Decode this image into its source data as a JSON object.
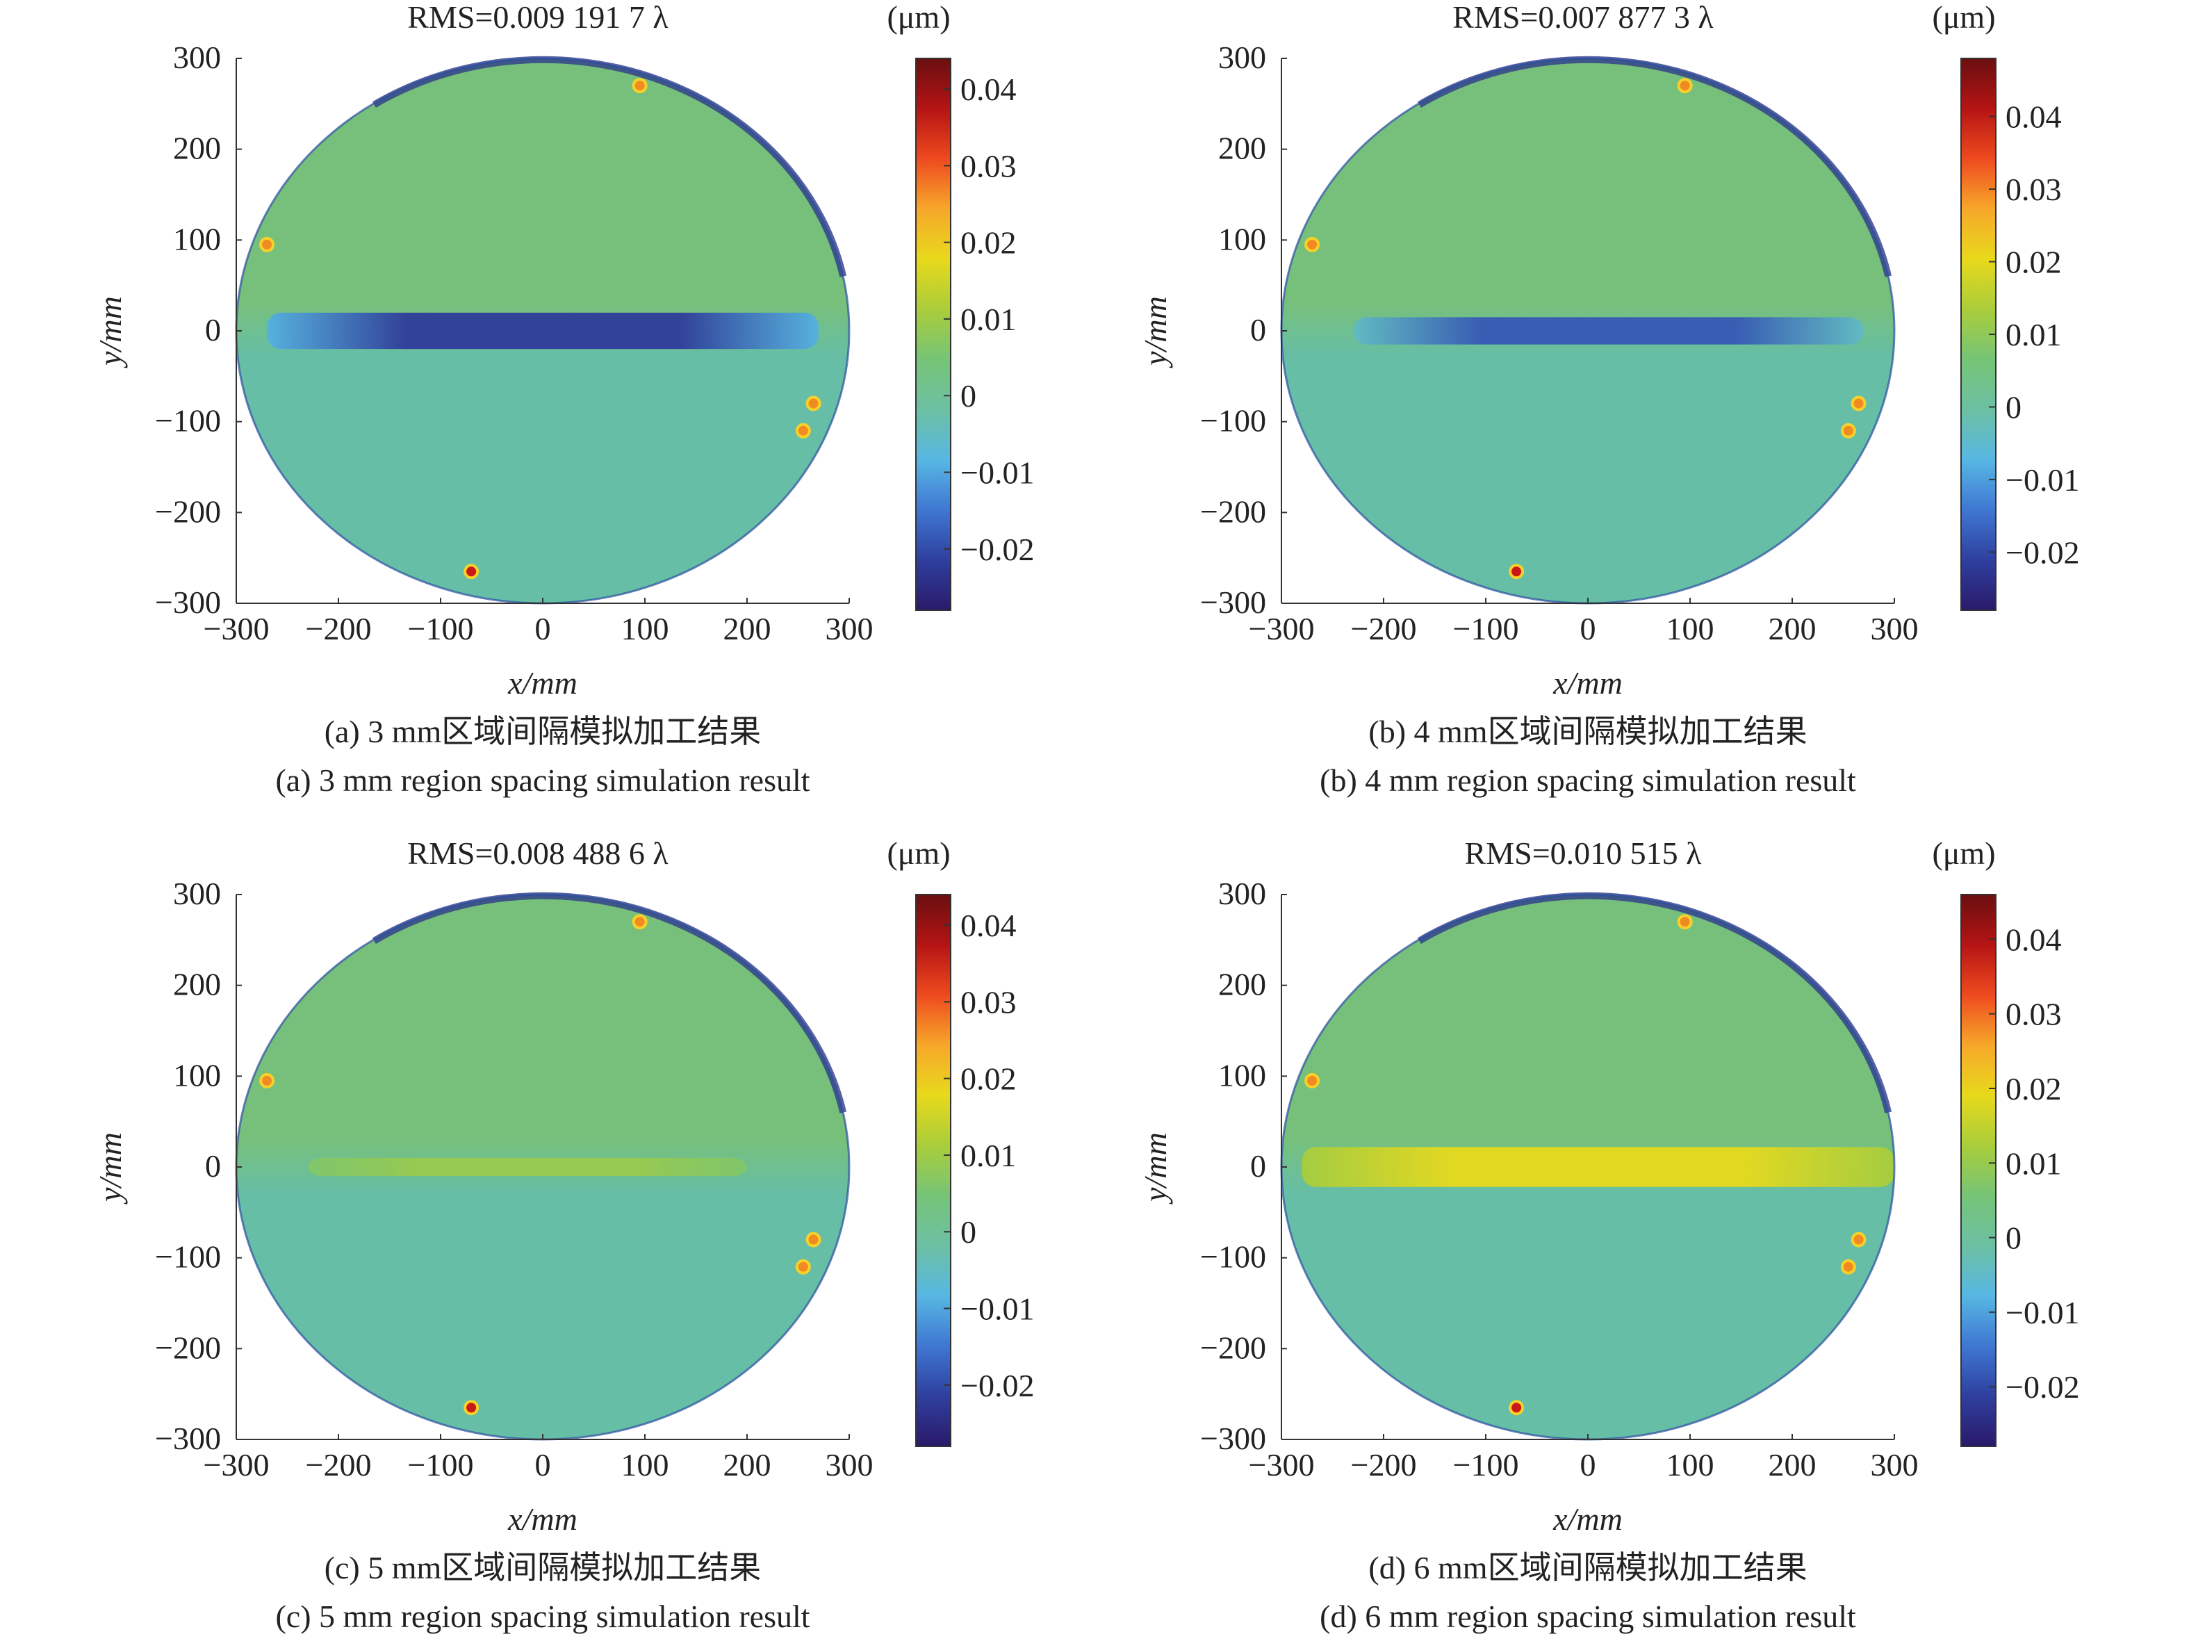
{
  "colors": {
    "colormap": [
      "#2a1a6a",
      "#2f3f9e",
      "#3f77d2",
      "#57b7e3",
      "#6cc0a3",
      "#76c477",
      "#aacd3a",
      "#e8d91c",
      "#f7a72a",
      "#ee4a1f",
      "#b51414",
      "#6a0f10"
    ],
    "field_low": "#66bea6",
    "field_high": "#77c07c",
    "rim": "#2f3a8a"
  },
  "chart_data": [
    {
      "type": "heatmap",
      "title": "RMS=0.009 191 7 λ",
      "unit_label": "(μm)",
      "xlabel": "x/mm",
      "ylabel": "y/mm",
      "xlim": [
        -300,
        300
      ],
      "ylim": [
        -300,
        300
      ],
      "x_ticks": [
        "−300",
        "−200",
        "−100",
        "0",
        "100",
        "200",
        "300"
      ],
      "y_ticks": [
        "300",
        "200",
        "100",
        "0",
        "−100",
        "−200",
        "−300"
      ],
      "colorbar": {
        "range": [
          -0.028,
          0.044
        ],
        "ticks": [
          0.04,
          0.03,
          0.02,
          0.01,
          0,
          -0.01,
          -0.02
        ],
        "tick_labels": [
          "0.04",
          "0.03",
          "0.02",
          "0.01",
          "0",
          "−0.01",
          "−0.02"
        ]
      },
      "band": {
        "y_center": 0,
        "half_height_mm": 20,
        "x_range": [
          -270,
          270
        ],
        "peak_value": -0.022,
        "edge_value": -0.009
      },
      "caption_cn": "(a) 3 mm区域间隔模拟加工结果",
      "caption_en": "(a) 3 mm region spacing simulation result"
    },
    {
      "type": "heatmap",
      "title": "RMS=0.007 877 3 λ",
      "unit_label": "(μm)",
      "xlabel": "x/mm",
      "ylabel": "y/mm",
      "xlim": [
        -300,
        300
      ],
      "ylim": [
        -300,
        300
      ],
      "x_ticks": [
        "−300",
        "−200",
        "−100",
        "0",
        "100",
        "200",
        "300"
      ],
      "y_ticks": [
        "300",
        "200",
        "100",
        "0",
        "−100",
        "−200",
        "−300"
      ],
      "colorbar": {
        "range": [
          -0.028,
          0.048
        ],
        "ticks": [
          0.04,
          0.03,
          0.02,
          0.01,
          0,
          -0.01,
          -0.02
        ],
        "tick_labels": [
          "0.04",
          "0.03",
          "0.02",
          "0.01",
          "0",
          "−0.01",
          "−0.02"
        ]
      },
      "band": {
        "y_center": 0,
        "half_height_mm": 15,
        "x_range": [
          -230,
          270
        ],
        "peak_value": -0.018,
        "edge_value": -0.004
      },
      "caption_cn": "(b) 4 mm区域间隔模拟加工结果",
      "caption_en": "(b) 4 mm region spacing simulation result"
    },
    {
      "type": "heatmap",
      "title": "RMS=0.008 488 6 λ",
      "unit_label": "(μm)",
      "xlabel": "x/mm",
      "ylabel": "y/mm",
      "xlim": [
        -300,
        300
      ],
      "ylim": [
        -300,
        300
      ],
      "x_ticks": [
        "−300",
        "−200",
        "−100",
        "0",
        "100",
        "200",
        "300"
      ],
      "y_ticks": [
        "300",
        "200",
        "100",
        "0",
        "−100",
        "−200",
        "−300"
      ],
      "colorbar": {
        "range": [
          -0.028,
          0.044
        ],
        "ticks": [
          0.04,
          0.03,
          0.02,
          0.01,
          0,
          -0.01,
          -0.02
        ],
        "tick_labels": [
          "0.04",
          "0.03",
          "0.02",
          "0.01",
          "0",
          "−0.01",
          "−0.02"
        ]
      },
      "band": {
        "y_center": 0,
        "half_height_mm": 10,
        "x_range": [
          -230,
          200
        ],
        "peak_value": 0.009,
        "edge_value": 0.006
      },
      "caption_cn": "(c) 5 mm区域间隔模拟加工结果",
      "caption_en": "(c) 5 mm region spacing simulation result"
    },
    {
      "type": "heatmap",
      "title": "RMS=0.010 515 λ",
      "unit_label": "(μm)",
      "xlabel": "x/mm",
      "ylabel": "y/mm",
      "xlim": [
        -300,
        300
      ],
      "ylim": [
        -300,
        300
      ],
      "x_ticks": [
        "−300",
        "−200",
        "−100",
        "0",
        "100",
        "200",
        "300"
      ],
      "y_ticks": [
        "300",
        "200",
        "100",
        "0",
        "−100",
        "−200",
        "−300"
      ],
      "colorbar": {
        "range": [
          -0.028,
          0.046
        ],
        "ticks": [
          0.04,
          0.03,
          0.02,
          0.01,
          0,
          -0.01,
          -0.02
        ],
        "tick_labels": [
          "0.04",
          "0.03",
          "0.02",
          "0.01",
          "0",
          "−0.01",
          "−0.02"
        ]
      },
      "band": {
        "y_center": 0,
        "half_height_mm": 22,
        "x_range": [
          -280,
          300
        ],
        "peak_value": 0.019,
        "edge_value": 0.012
      },
      "caption_cn": "(d) 6 mm区域间隔模拟加工结果",
      "caption_en": "(d) 6 mm region spacing simulation result"
    }
  ]
}
